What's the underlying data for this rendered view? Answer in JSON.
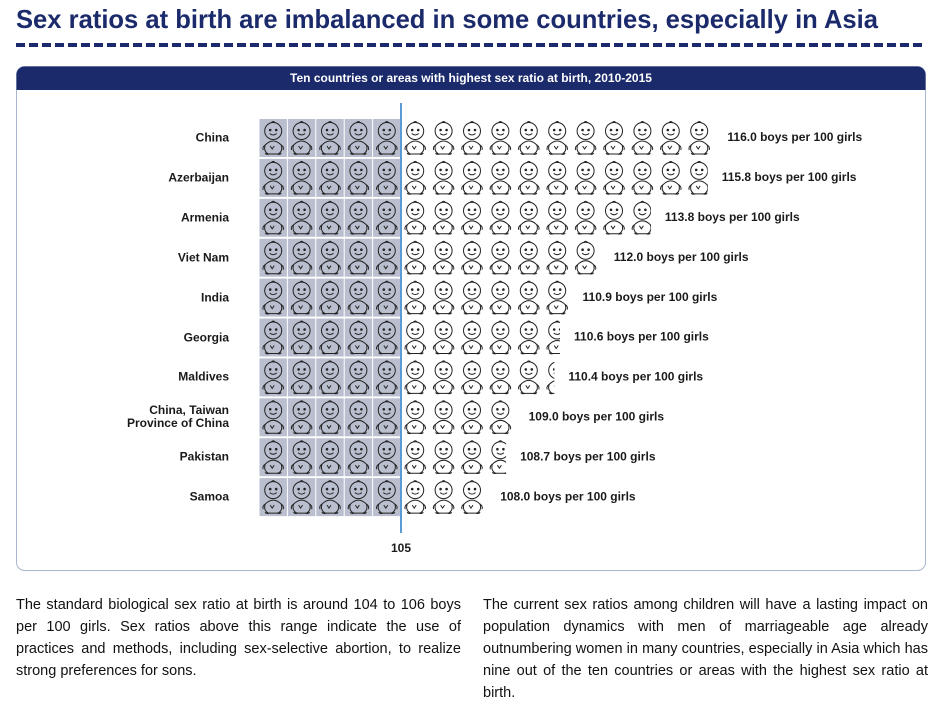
{
  "heading": "Sex ratios at birth are imbalanced in some countries, especially in Asia",
  "chart_data": {
    "type": "pictograph",
    "title": "Ten countries or areas with highest sex ratio at birth, 2010-2015",
    "categories": [
      "China",
      "Azerbaijan",
      "Armenia",
      "Viet Nam",
      "India",
      "Georgia",
      "Maldives",
      "China, Taiwan Province of China",
      "Pakistan",
      "Samoa"
    ],
    "values": [
      116.0,
      115.8,
      113.8,
      112.0,
      110.9,
      110.6,
      110.4,
      109.0,
      108.7,
      108.0
    ],
    "value_labels": [
      "116.0 boys per 100 girls",
      "115.8 boys per 100 girls",
      "113.8 boys per 100 girls",
      "112.0 boys per 100 girls",
      "110.9 boys per 100 girls",
      "110.6 boys per 100 girls",
      "110.4 boys per 100 girls",
      "109.0 boys per 100 girls",
      "108.7 boys per 100 girls",
      "108.0 boys per 100 girls"
    ],
    "xlim": [
      100,
      116
    ],
    "xticks": [
      105
    ]
  },
  "paragraphs": [
    "The standard biological sex ratio at birth is around 104 to 106 boys per 100 girls. Sex ratios above this range indicate the use of practices and methods, including sex-selective abortion, to realize strong preferences for sons.",
    "The current sex ratios among children will have a lasting impact on population dynamics with men of marriageable age already outnumbering women in many countries, especially in Asia which has nine out of the ten countries or areas with the highest sex ratio at birth."
  ]
}
